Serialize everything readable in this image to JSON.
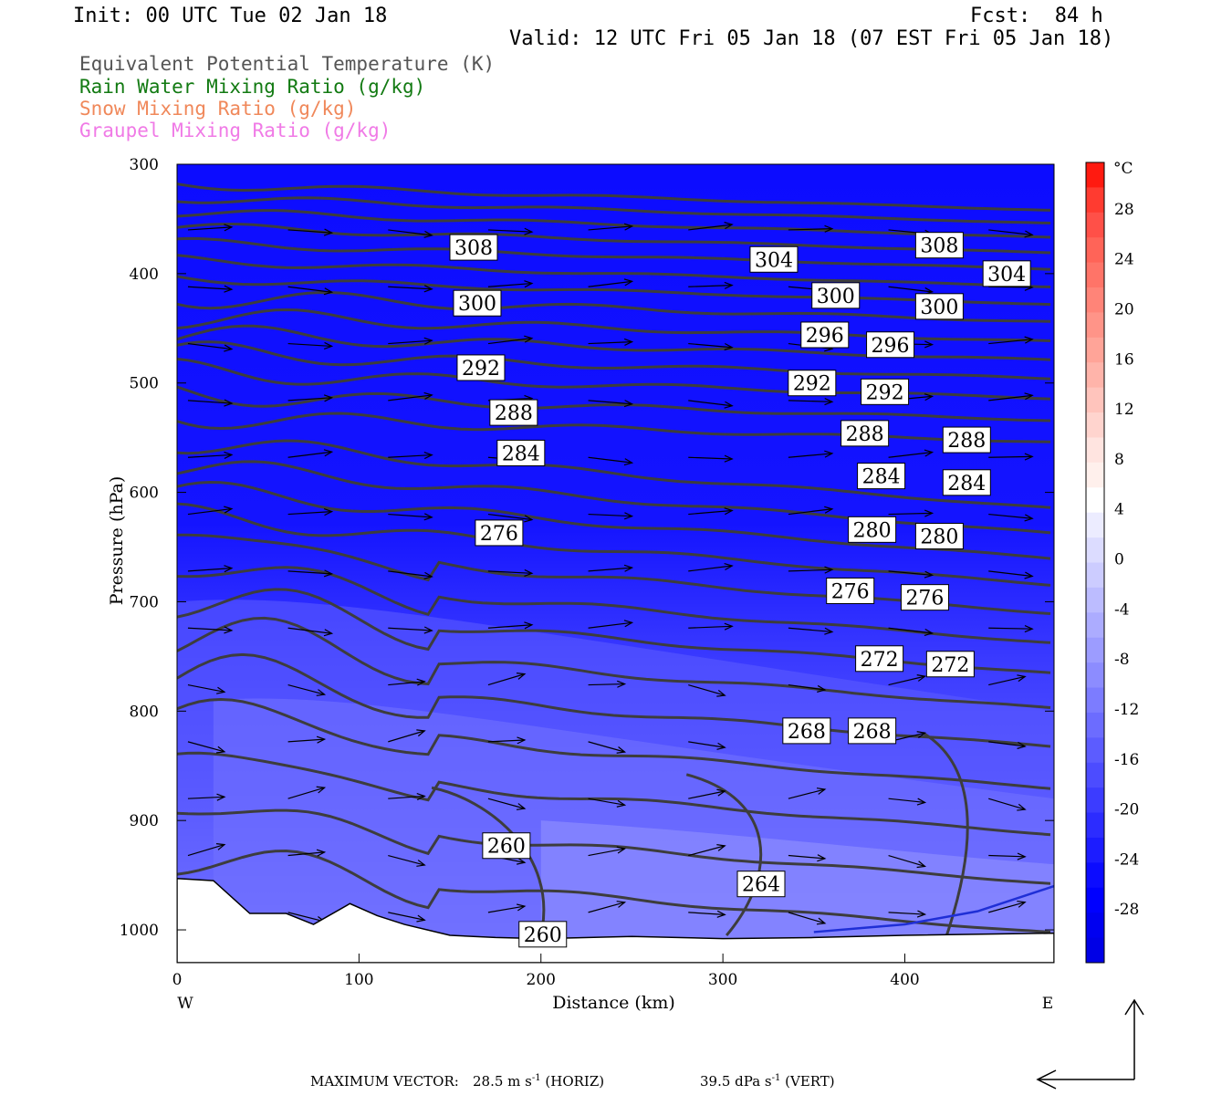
{
  "header": {
    "init": "Init: 00 UTC Tue 02 Jan 18",
    "fcst": "Fcst:  84 h",
    "valid": "Valid: 12 UTC Fri 05 Jan 18 (07 EST Fri 05 Jan 18)"
  },
  "legend": [
    {
      "label": "Equivalent Potential Temperature (K)",
      "color": "#555555"
    },
    {
      "label": "Rain Water Mixing Ratio (g/kg)",
      "color": "#127a12"
    },
    {
      "label": "Snow Mixing Ratio (g/kg)",
      "color": "#f0885a"
    },
    {
      "label": "Graupel Mixing Ratio (g/kg)",
      "color": "#f07ae6"
    }
  ],
  "footer": {
    "max_label": "MAXIMUM VECTOR:",
    "horiz_value": "28.5 m s",
    "horiz_exp": "-1",
    "horiz_unit": "(HORIZ)",
    "vert_value": "39.5 dPa s",
    "vert_exp": "-1",
    "vert_unit": "(VERT)"
  },
  "chart_data": {
    "type": "cross-section contour",
    "xlabel": "Distance (km)",
    "ylabel": "Pressure (hPa)",
    "xlim": [
      0,
      482
    ],
    "ylim": [
      1030,
      300
    ],
    "x_ticks": [
      0,
      100,
      200,
      300,
      400
    ],
    "y_ticks": [
      300,
      400,
      500,
      600,
      700,
      800,
      900,
      1000
    ],
    "x_end_labels": {
      "left": "W",
      "right": "E"
    },
    "colorbar": {
      "unit": "°C",
      "tick_labels": [
        "28",
        "24",
        "20",
        "16",
        "12",
        "8",
        "4",
        "0",
        "-4",
        "-8",
        "-12",
        "-16",
        "-20",
        "-24",
        "-28"
      ],
      "levels": [
        32,
        30,
        28,
        26,
        24,
        22,
        20,
        18,
        16,
        14,
        12,
        10,
        8,
        6,
        4,
        2,
        0,
        -2,
        -4,
        -6,
        -8,
        -10,
        -12,
        -14,
        -16,
        -18,
        -20,
        -22,
        -24,
        -26,
        -28,
        -30,
        -32
      ],
      "colors": [
        "#ff1a10",
        "#ff3b30",
        "#ff5048",
        "#ff6458",
        "#ff7468",
        "#ff8478",
        "#ff9488",
        "#ffa498",
        "#ffb4aa",
        "#ffc4bc",
        "#ffd4ce",
        "#ffe4e0",
        "#fff0ec",
        "#ffffff",
        "#ececff",
        "#dcdcff",
        "#ccccff",
        "#bcbcff",
        "#acacff",
        "#9c9cff",
        "#8c8cff",
        "#7c7cff",
        "#6c6cff",
        "#5c5cff",
        "#4c4cff",
        "#3c3cff",
        "#2c2cff",
        "#1c1cff",
        "#0c0cff",
        "#0000ff",
        "#0000f0",
        "#0000e6"
      ]
    },
    "theta_e_contours": {
      "color": "#3d3d3d",
      "levels": [
        260,
        264,
        268,
        272,
        276,
        280,
        284,
        288,
        292,
        296,
        300,
        304,
        308
      ],
      "labels": [
        {
          "value": "308",
          "x": 163,
          "p": 376
        },
        {
          "value": "304",
          "x": 328,
          "p": 387
        },
        {
          "value": "308",
          "x": 419,
          "p": 374
        },
        {
          "value": "304",
          "x": 456,
          "p": 400
        },
        {
          "value": "300",
          "x": 165,
          "p": 427
        },
        {
          "value": "300",
          "x": 362,
          "p": 420
        },
        {
          "value": "300",
          "x": 419,
          "p": 430
        },
        {
          "value": "296",
          "x": 356,
          "p": 456
        },
        {
          "value": "296",
          "x": 392,
          "p": 465
        },
        {
          "value": "292",
          "x": 167,
          "p": 486
        },
        {
          "value": "292",
          "x": 349,
          "p": 500
        },
        {
          "value": "292",
          "x": 389,
          "p": 508
        },
        {
          "value": "288",
          "x": 185,
          "p": 527
        },
        {
          "value": "288",
          "x": 378,
          "p": 546
        },
        {
          "value": "288",
          "x": 434,
          "p": 552
        },
        {
          "value": "284",
          "x": 189,
          "p": 564
        },
        {
          "value": "284",
          "x": 387,
          "p": 585
        },
        {
          "value": "284",
          "x": 434,
          "p": 591
        },
        {
          "value": "276",
          "x": 177,
          "p": 637
        },
        {
          "value": "280",
          "x": 382,
          "p": 634
        },
        {
          "value": "280",
          "x": 419,
          "p": 640
        },
        {
          "value": "276",
          "x": 370,
          "p": 690
        },
        {
          "value": "276",
          "x": 411,
          "p": 696
        },
        {
          "value": "272",
          "x": 386,
          "p": 752
        },
        {
          "value": "272",
          "x": 425,
          "p": 757
        },
        {
          "value": "268",
          "x": 346,
          "p": 818
        },
        {
          "value": "268",
          "x": 382,
          "p": 818
        },
        {
          "value": "260",
          "x": 181,
          "p": 923
        },
        {
          "value": "264",
          "x": 321,
          "p": 958
        },
        {
          "value": "260",
          "x": 201,
          "p": 1004
        }
      ]
    },
    "surface_pressure_profile": [
      [
        0,
        953
      ],
      [
        20,
        955
      ],
      [
        40,
        985
      ],
      [
        60,
        985
      ],
      [
        75,
        995
      ],
      [
        95,
        976
      ],
      [
        110,
        987
      ],
      [
        125,
        995
      ],
      [
        150,
        1005
      ],
      [
        175,
        1007
      ],
      [
        200,
        1008
      ],
      [
        250,
        1006
      ],
      [
        300,
        1008
      ],
      [
        350,
        1007
      ],
      [
        400,
        1005
      ],
      [
        482,
        1003
      ]
    ],
    "rain_water_contour": {
      "color": "#1f2fd6",
      "points": [
        [
          350,
          1002
        ],
        [
          400,
          995
        ],
        [
          440,
          983
        ],
        [
          482,
          960
        ]
      ]
    }
  }
}
